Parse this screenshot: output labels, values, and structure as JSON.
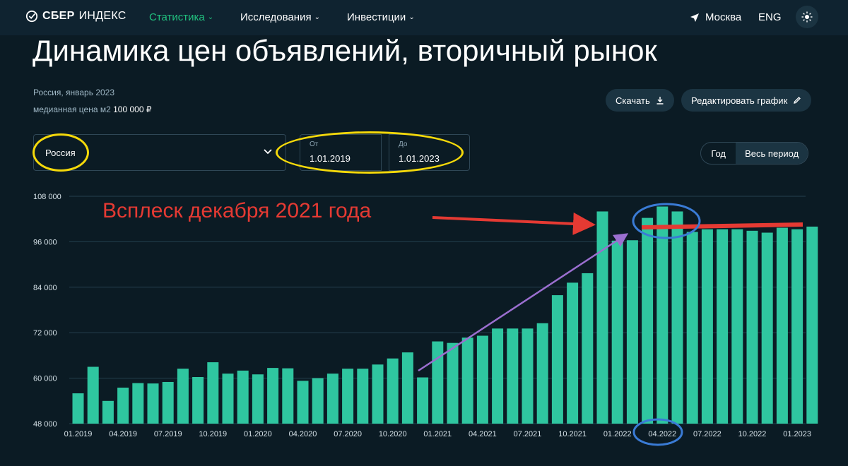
{
  "nav": {
    "logo_brand": "СБЕР",
    "logo_product": "ИНДЕКС",
    "items": [
      {
        "label": "Статистика",
        "active": true
      },
      {
        "label": "Исследования",
        "active": false
      },
      {
        "label": "Инвестиции",
        "active": false
      }
    ],
    "city": "Москва",
    "lang": "ENG"
  },
  "page": {
    "title": "Динамика цен объявлений, вторичный рынок",
    "region_date": "Россия, январь 2023",
    "median_label": "медианная цена м2",
    "median_value": "100 000 ₽",
    "download_label": "Скачать",
    "edit_label": "Редактировать график"
  },
  "filters": {
    "region": "Россия",
    "from_label": "От",
    "from_value": "1.01.2019",
    "to_label": "До",
    "to_value": "1.01.2023",
    "period_year": "Год",
    "period_all": "Весь период"
  },
  "annotation": {
    "text": "Всплеск декабря 2021 года"
  },
  "colors": {
    "bar": "#2fc6a0",
    "accent": "#21c27f",
    "annotation_red": "#e53a33",
    "arrow_purple": "#9b6fd0",
    "highlight_yellow": "#f5d90a",
    "highlight_blue": "#3a7bd5"
  },
  "chart_data": {
    "type": "bar",
    "ylim": [
      48000,
      108000
    ],
    "yticks": [
      "108 000",
      "96 000",
      "84 000",
      "72 000",
      "60 000",
      "48 000"
    ],
    "ytick_values": [
      108000,
      96000,
      84000,
      72000,
      60000,
      48000
    ],
    "xtick_labels": [
      "01.2019",
      "04.2019",
      "07.2019",
      "10.2019",
      "01.2020",
      "04.2020",
      "07.2020",
      "10.2020",
      "01.2021",
      "04.2021",
      "07.2021",
      "10.2021",
      "01.2022",
      "04.2022",
      "07.2022",
      "10.2022",
      "01.2023"
    ],
    "grid": true,
    "values": [
      56000,
      63000,
      54000,
      57500,
      58700,
      58600,
      59000,
      62500,
      60300,
      64200,
      61200,
      62000,
      61000,
      62700,
      62600,
      59300,
      60000,
      61200,
      62500,
      62500,
      63600,
      65200,
      66800,
      60200,
      69700,
      69300,
      70700,
      71200,
      73100,
      73100,
      73100,
      74500,
      81900,
      85200,
      87700,
      104000,
      96300,
      96400,
      102300,
      105300,
      104000,
      98600,
      99300,
      99300,
      99300,
      98900,
      98400,
      99700,
      99300,
      100000
    ]
  }
}
